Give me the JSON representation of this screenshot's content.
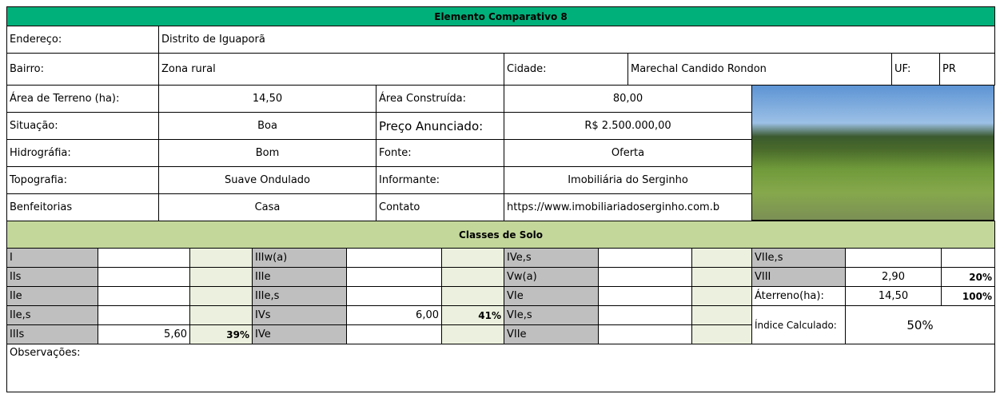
{
  "title": "Elemento Comparativo 8",
  "endereco": {
    "label": "Endereço:",
    "value": "Distrito de Iguaporã"
  },
  "bairro": {
    "label": "Bairro:",
    "value": "Zona rural"
  },
  "cidade": {
    "label": "Cidade:",
    "value": "Marechal Candido Rondon"
  },
  "uf": {
    "label": "UF:",
    "value": "PR"
  },
  "fields": [
    [
      "Área de Terreno (ha):",
      "14,50",
      "Área Construída:",
      "80,00"
    ],
    [
      "Situação:",
      "Boa",
      "Preço Anunciado:",
      "R$ 2.500.000,00"
    ],
    [
      "Hidrográfia:",
      "Bom",
      "Fonte:",
      "Oferta"
    ],
    [
      "Topografia:",
      "Suave Ondulado",
      "Informante:",
      "Imobiliária do Serginho"
    ],
    [
      "Benfeitorias",
      "Casa",
      "Contato",
      "https://www.imobiliariadoserginho.com.b"
    ]
  ],
  "soil_title": "Classes de Solo",
  "soil": [
    [
      [
        "I",
        null,
        null
      ],
      [
        "IIs",
        null,
        null
      ],
      [
        "IIe",
        null,
        null
      ],
      [
        "IIe,s",
        null,
        null
      ],
      [
        "IIIs",
        "5,60",
        "39%"
      ]
    ],
    [
      [
        "IIIw(a)",
        null,
        null
      ],
      [
        "IIIe",
        null,
        null
      ],
      [
        "IIIe,s",
        null,
        null
      ],
      [
        "IVs",
        "6,00",
        "41%"
      ],
      [
        "IVe",
        null,
        null
      ]
    ],
    [
      [
        "IVe,s",
        null,
        null
      ],
      [
        "Vw(a)",
        null,
        null
      ],
      [
        "VIe",
        null,
        null
      ],
      [
        "VIe,s",
        null,
        null
      ],
      [
        "VIIe",
        null,
        null
      ]
    ],
    [
      [
        "VIIe,s",
        null,
        null
      ],
      [
        "VIII",
        "2,90",
        "20%"
      ],
      [
        "Áterreno(ha):",
        "14,50",
        "100%"
      ]
    ]
  ],
  "indice": {
    "label": "Índice Calculado:",
    "value": "50%"
  },
  "observacoes": "Observações:"
}
